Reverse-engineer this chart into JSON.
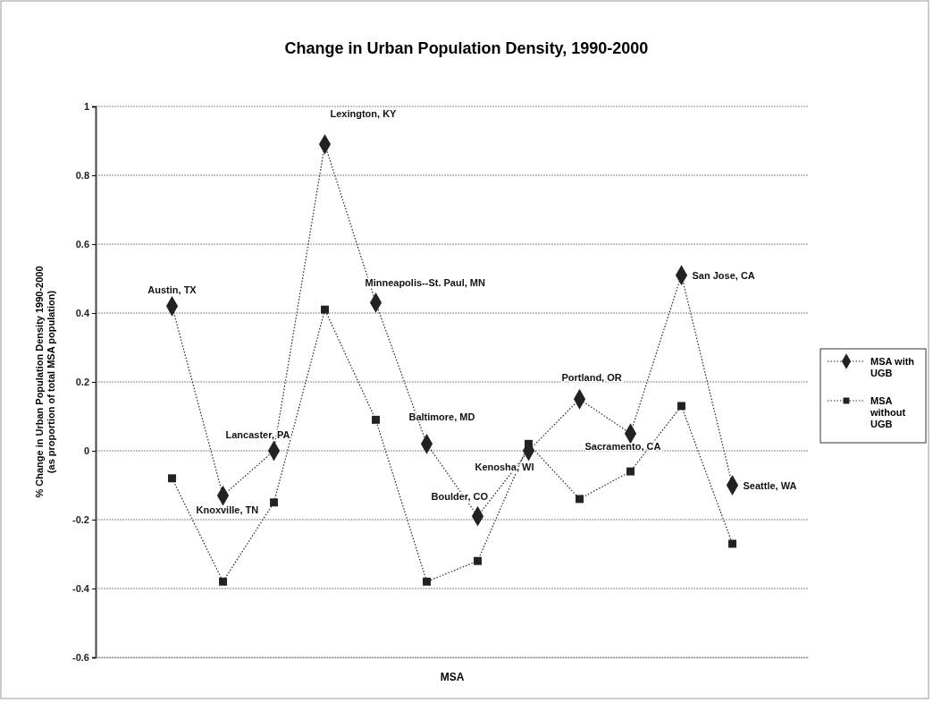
{
  "chart_data": {
    "type": "line",
    "title": "Change in Urban Population Density, 1990-2000",
    "xlabel": "MSA",
    "ylabel": "% Change in Urban Population Density 1990-2000\n(as proportion of total MSA population)",
    "categories": [
      null,
      null,
      null,
      null,
      null,
      null,
      null,
      null,
      null,
      null,
      null,
      null
    ],
    "series": [
      {
        "name": "MSA with UGB",
        "color": "#222222",
        "marker": "diamond",
        "values": [
          0.42,
          -0.13,
          0.0,
          0.89,
          0.43,
          0.02,
          -0.19,
          0.0,
          0.15,
          0.05,
          0.51,
          -0.1
        ]
      },
      {
        "name": "MSA without UGB",
        "color": "#222222",
        "marker": "square",
        "values": [
          -0.08,
          -0.38,
          -0.15,
          0.41,
          0.09,
          -0.38,
          -0.32,
          0.02,
          -0.14,
          -0.06,
          0.13,
          -0.27
        ]
      }
    ],
    "annotations": [
      "Austin, TX",
      "Knoxville, TN",
      "Lancaster, PA",
      "Lexington, KY",
      "Minneapolis--St. Paul, MN",
      "Baltimore, MD",
      "Boulder, CO",
      "Kenosha, WI",
      "Portland, OR",
      "Sacramento, CA",
      "San Jose, CA",
      "Seattle, WA"
    ],
    "ylim": [
      -0.6,
      1
    ],
    "yticks": [
      -0.6,
      -0.4,
      -0.2,
      0,
      0.2,
      0.4,
      0.6,
      0.8,
      1
    ],
    "grid": "y",
    "legend": "right",
    "line_style": "dotted"
  }
}
